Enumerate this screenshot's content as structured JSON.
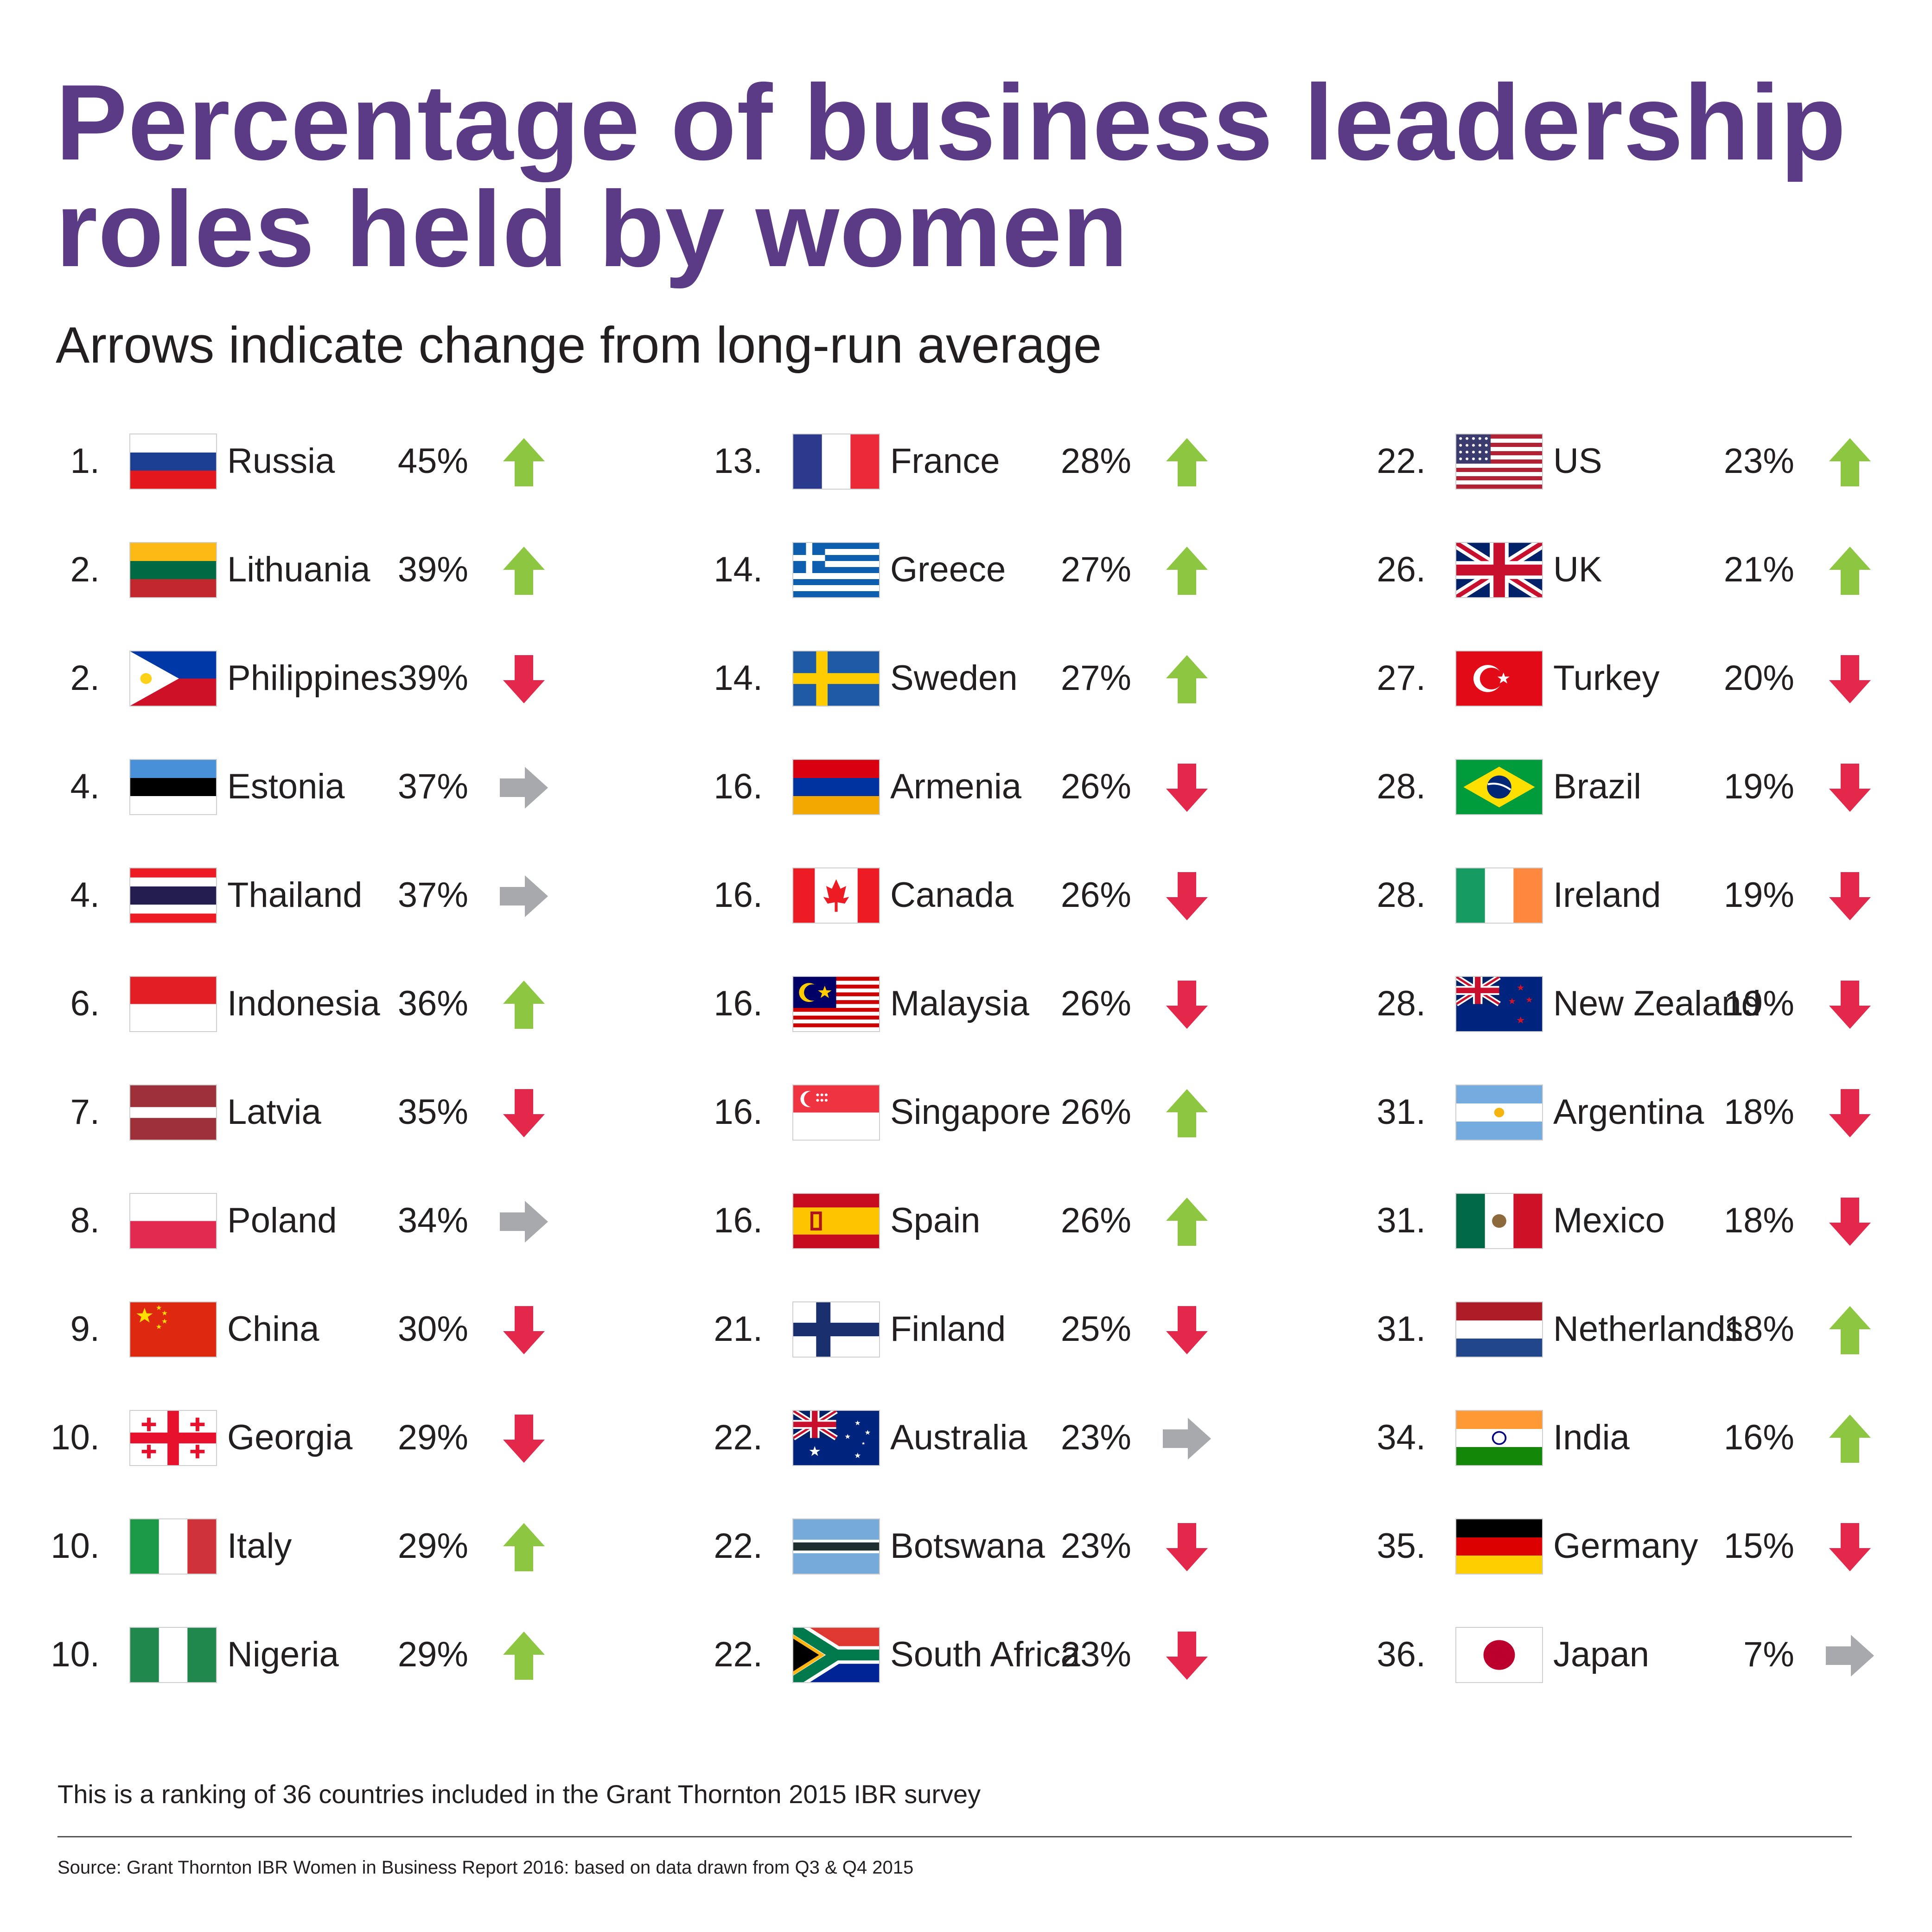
{
  "title": "Percentage of business leadership roles held by women",
  "subtitle": "Arrows indicate change from long-run average",
  "note": "This is a ranking of 36 countries included in the Grant Thornton 2015 IBR survey",
  "source": "Source: Grant Thornton IBR Women in Business Report 2016: based on data drawn from Q3 & Q4 2015",
  "colors": {
    "title": "#5b3a86",
    "up": "#8dc641",
    "down": "#e3284b",
    "flat": "#a7a9ac"
  },
  "chart_data": {
    "type": "table",
    "title": "Percentage of business leadership roles held by women",
    "subtitle": "Arrows indicate change from long-run average",
    "columns": [
      "rank",
      "country",
      "value",
      "trend"
    ],
    "unit": "%",
    "rows": [
      {
        "rank": "1.",
        "country": "Russia",
        "flag": "russia",
        "value": 45,
        "label": "45%",
        "trend": "up"
      },
      {
        "rank": "2.",
        "country": "Lithuania",
        "flag": "lithuania",
        "value": 39,
        "label": "39%",
        "trend": "up"
      },
      {
        "rank": "2.",
        "country": "Philippines",
        "flag": "philippines",
        "value": 39,
        "label": "39%",
        "trend": "down"
      },
      {
        "rank": "4.",
        "country": "Estonia",
        "flag": "estonia",
        "value": 37,
        "label": "37%",
        "trend": "flat"
      },
      {
        "rank": "4.",
        "country": "Thailand",
        "flag": "thailand",
        "value": 37,
        "label": "37%",
        "trend": "flat"
      },
      {
        "rank": "6.",
        "country": "Indonesia",
        "flag": "indonesia",
        "value": 36,
        "label": "36%",
        "trend": "up"
      },
      {
        "rank": "7.",
        "country": "Latvia",
        "flag": "latvia",
        "value": 35,
        "label": "35%",
        "trend": "down"
      },
      {
        "rank": "8.",
        "country": "Poland",
        "flag": "poland",
        "value": 34,
        "label": "34%",
        "trend": "flat"
      },
      {
        "rank": "9.",
        "country": "China",
        "flag": "china",
        "value": 30,
        "label": "30%",
        "trend": "down"
      },
      {
        "rank": "10.",
        "country": "Georgia",
        "flag": "georgia",
        "value": 29,
        "label": "29%",
        "trend": "down"
      },
      {
        "rank": "10.",
        "country": "Italy",
        "flag": "italy",
        "value": 29,
        "label": "29%",
        "trend": "up"
      },
      {
        "rank": "10.",
        "country": "Nigeria",
        "flag": "nigeria",
        "value": 29,
        "label": "29%",
        "trend": "up"
      },
      {
        "rank": "13.",
        "country": "France",
        "flag": "france",
        "value": 28,
        "label": "28%",
        "trend": "up"
      },
      {
        "rank": "14.",
        "country": "Greece",
        "flag": "greece",
        "value": 27,
        "label": "27%",
        "trend": "up"
      },
      {
        "rank": "14.",
        "country": "Sweden",
        "flag": "sweden",
        "value": 27,
        "label": "27%",
        "trend": "up"
      },
      {
        "rank": "16.",
        "country": "Armenia",
        "flag": "armenia",
        "value": 26,
        "label": "26%",
        "trend": "down"
      },
      {
        "rank": "16.",
        "country": "Canada",
        "flag": "canada",
        "value": 26,
        "label": "26%",
        "trend": "down"
      },
      {
        "rank": "16.",
        "country": "Malaysia",
        "flag": "malaysia",
        "value": 26,
        "label": "26%",
        "trend": "down"
      },
      {
        "rank": "16.",
        "country": "Singapore",
        "flag": "singapore",
        "value": 26,
        "label": "26%",
        "trend": "up"
      },
      {
        "rank": "16.",
        "country": "Spain",
        "flag": "spain",
        "value": 26,
        "label": "26%",
        "trend": "up"
      },
      {
        "rank": "21.",
        "country": "Finland",
        "flag": "finland",
        "value": 25,
        "label": "25%",
        "trend": "down"
      },
      {
        "rank": "22.",
        "country": "Australia",
        "flag": "australia",
        "value": 23,
        "label": "23%",
        "trend": "flat"
      },
      {
        "rank": "22.",
        "country": "Botswana",
        "flag": "botswana",
        "value": 23,
        "label": "23%",
        "trend": "down"
      },
      {
        "rank": "22.",
        "country": "South Africa",
        "flag": "southafrica",
        "value": 23,
        "label": "23%",
        "trend": "down"
      },
      {
        "rank": "22.",
        "country": "US",
        "flag": "us",
        "value": 23,
        "label": "23%",
        "trend": "up"
      },
      {
        "rank": "26.",
        "country": "UK",
        "flag": "uk",
        "value": 21,
        "label": "21%",
        "trend": "up"
      },
      {
        "rank": "27.",
        "country": "Turkey",
        "flag": "turkey",
        "value": 20,
        "label": "20%",
        "trend": "down"
      },
      {
        "rank": "28.",
        "country": "Brazil",
        "flag": "brazil",
        "value": 19,
        "label": "19%",
        "trend": "down"
      },
      {
        "rank": "28.",
        "country": "Ireland",
        "flag": "ireland",
        "value": 19,
        "label": "19%",
        "trend": "down"
      },
      {
        "rank": "28.",
        "country": "New Zealand",
        "flag": "newzealand",
        "value": 19,
        "label": "19%",
        "trend": "down"
      },
      {
        "rank": "31.",
        "country": "Argentina",
        "flag": "argentina",
        "value": 18,
        "label": "18%",
        "trend": "down"
      },
      {
        "rank": "31.",
        "country": "Mexico",
        "flag": "mexico",
        "value": 18,
        "label": "18%",
        "trend": "down"
      },
      {
        "rank": "31.",
        "country": "Netherlands",
        "flag": "netherlands",
        "value": 18,
        "label": "18%",
        "trend": "up"
      },
      {
        "rank": "34.",
        "country": "India",
        "flag": "india",
        "value": 16,
        "label": "16%",
        "trend": "up"
      },
      {
        "rank": "35.",
        "country": "Germany",
        "flag": "germany",
        "value": 15,
        "label": "15%",
        "trend": "down"
      },
      {
        "rank": "36.",
        "country": "Japan",
        "flag": "japan",
        "value": 7,
        "label": "7%",
        "trend": "flat"
      }
    ]
  }
}
